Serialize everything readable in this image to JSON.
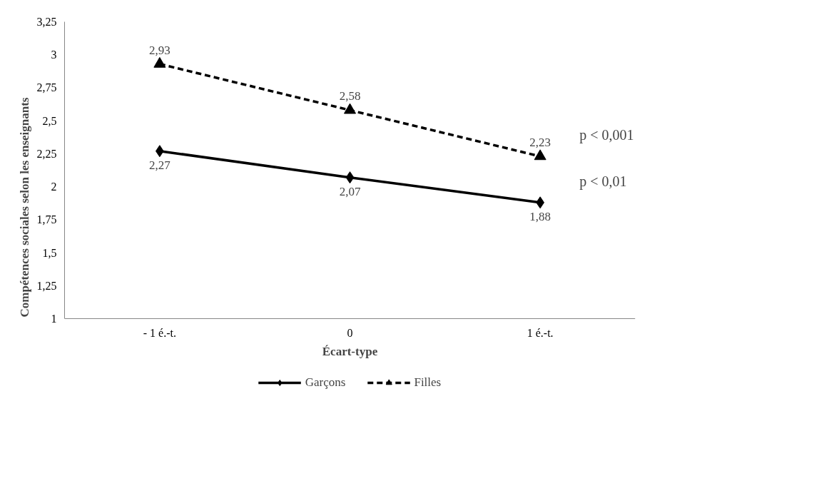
{
  "chart_data": {
    "type": "line",
    "xlabel": "Écart-type",
    "ylabel": "Compétences sociales selon les enseignants",
    "categories": [
      "- 1 é.-t.",
      "0",
      "1 é.-t."
    ],
    "series": [
      {
        "name": "Garçons",
        "color": "#000000",
        "marker": "diamond",
        "line_style": "solid",
        "values": [
          2.27,
          2.07,
          1.88
        ],
        "value_labels": [
          "2,27",
          "2,07",
          "1,88"
        ]
      },
      {
        "name": "Filles",
        "color": "#000000",
        "marker": "triangle",
        "line_style": "dashed",
        "values": [
          2.93,
          2.58,
          2.23
        ],
        "value_labels": [
          "2,93",
          "2,58",
          "2,23"
        ]
      }
    ],
    "ylim": [
      1,
      3.25
    ],
    "yticks": [
      1,
      {
        "value": 1.25,
        "label": "1,25"
      },
      {
        "value": 1.5,
        "label": "1,5"
      },
      {
        "value": 1.75,
        "label": "1,75"
      },
      2,
      {
        "value": 2.25,
        "label": "2,25"
      },
      {
        "value": 2.5,
        "label": "2,5"
      },
      {
        "value": 2.75,
        "label": "2,75"
      },
      3,
      {
        "value": 3.25,
        "label": "3,25"
      }
    ],
    "annotations": [
      "p < 0,001",
      "p < 0,01"
    ],
    "grid": false,
    "legend": "bottom"
  }
}
